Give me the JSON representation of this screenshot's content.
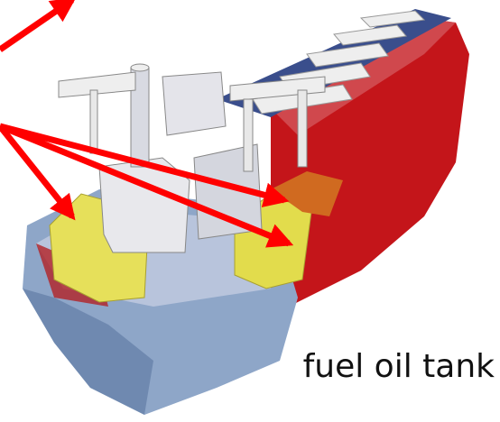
{
  "label": "fuel oil tank"
}
